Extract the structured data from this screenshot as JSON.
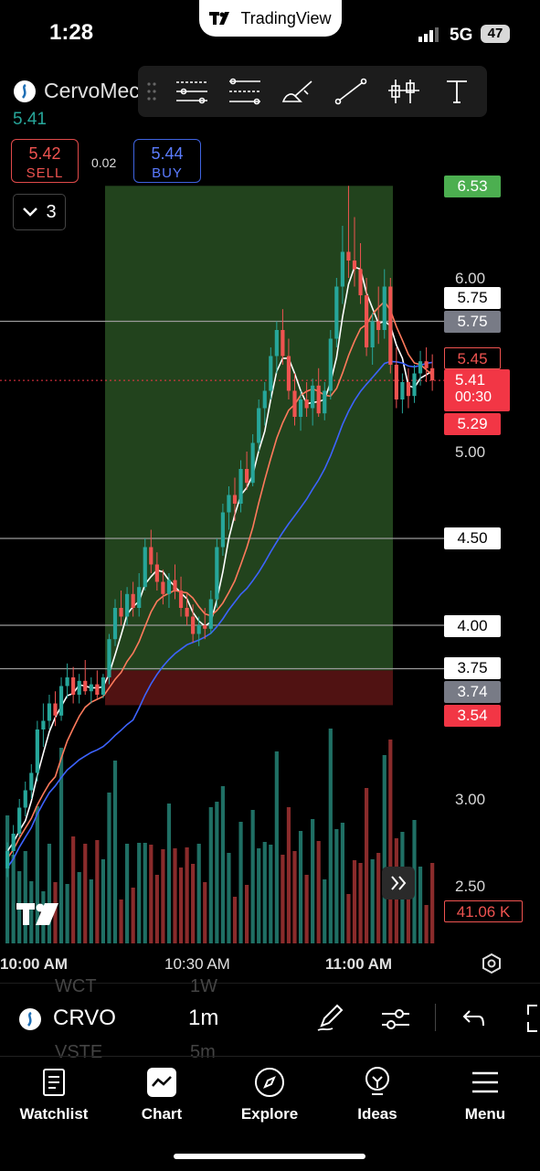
{
  "status_bar": {
    "time": "1:28",
    "network": "5G",
    "battery": "47"
  },
  "app": {
    "name": "TradingView"
  },
  "header": {
    "symbol_name": "CervoMec",
    "last_price": "5.41",
    "sell": {
      "price": "5.42",
      "label": "SELL"
    },
    "buy": {
      "price": "5.44",
      "label": "BUY"
    },
    "spread": "0.02",
    "layers_count": "3"
  },
  "draw_tools": [
    "horizontal-lines-icon",
    "parallel-channel-icon",
    "brush-icon",
    "trend-line-icon",
    "candles-icon",
    "text-icon"
  ],
  "price_axis": {
    "labels": [
      "6.00",
      "5.00",
      "3.00",
      "2.50"
    ],
    "tags": [
      {
        "text": "6.53",
        "role": "take-profit"
      },
      {
        "text": "5.75",
        "role": "line-white"
      },
      {
        "text": "5.75",
        "role": "gray"
      },
      {
        "text": "5.45",
        "role": "red-outline"
      },
      {
        "text": "5.41",
        "role": "last"
      },
      {
        "text": "00:30",
        "role": "countdown"
      },
      {
        "text": "5.29",
        "role": "red"
      },
      {
        "text": "4.50",
        "role": "line-white"
      },
      {
        "text": "4.00",
        "role": "line-white"
      },
      {
        "text": "3.75",
        "role": "line-white"
      },
      {
        "text": "3.74",
        "role": "gray"
      },
      {
        "text": "3.54",
        "role": "stop-loss"
      },
      {
        "text": "41.06 K",
        "role": "volume"
      }
    ]
  },
  "time_axis": [
    "10:00 AM",
    "10:30 AM",
    "11:00 AM"
  ],
  "bottom": {
    "ghost_intervals": [
      "WCT",
      "1W",
      "VSTE",
      "5m"
    ],
    "symbol": "CRVO",
    "interval": "1m"
  },
  "tabs": [
    {
      "label": "Watchlist",
      "icon": "watchlist-icon"
    },
    {
      "label": "Chart",
      "icon": "chart-icon"
    },
    {
      "label": "Explore",
      "icon": "compass-icon"
    },
    {
      "label": "Ideas",
      "icon": "ideas-icon"
    },
    {
      "label": "Menu",
      "icon": "menu-icon"
    }
  ],
  "chart_data": {
    "type": "candlestick",
    "symbol": "CRVO",
    "interval": "1m",
    "x": [
      "10:00 AM",
      "10:30 AM",
      "11:00 AM"
    ],
    "position": {
      "entry": 3.74,
      "target": 6.53,
      "stop": 3.54
    },
    "horizontal_lines": [
      5.75,
      4.5,
      4.0,
      3.75
    ],
    "candles_ohlc": [
      [
        2.6,
        2.75,
        2.55,
        2.7
      ],
      [
        2.7,
        2.85,
        2.66,
        2.8
      ],
      [
        2.8,
        3.0,
        2.78,
        2.95
      ],
      [
        2.95,
        3.1,
        2.9,
        3.05
      ],
      [
        3.05,
        3.2,
        3.0,
        3.15
      ],
      [
        3.15,
        3.45,
        3.1,
        3.4
      ],
      [
        3.4,
        3.55,
        3.3,
        3.45
      ],
      [
        3.45,
        3.6,
        3.4,
        3.55
      ],
      [
        3.55,
        3.62,
        3.42,
        3.48
      ],
      [
        3.48,
        3.7,
        3.45,
        3.65
      ],
      [
        3.65,
        3.78,
        3.58,
        3.7
      ],
      [
        3.7,
        3.76,
        3.55,
        3.6
      ],
      [
        3.6,
        3.72,
        3.55,
        3.68
      ],
      [
        3.68,
        3.8,
        3.6,
        3.62
      ],
      [
        3.62,
        3.7,
        3.55,
        3.66
      ],
      [
        3.66,
        3.74,
        3.58,
        3.6
      ],
      [
        3.6,
        3.72,
        3.58,
        3.7
      ],
      [
        3.7,
        3.95,
        3.66,
        3.92
      ],
      [
        3.92,
        4.15,
        3.88,
        4.1
      ],
      [
        4.1,
        4.2,
        4.0,
        4.05
      ],
      [
        4.05,
        4.22,
        4.0,
        4.18
      ],
      [
        4.18,
        4.25,
        4.05,
        4.1
      ],
      [
        4.1,
        4.3,
        4.05,
        4.22
      ],
      [
        4.22,
        4.5,
        4.2,
        4.45
      ],
      [
        4.45,
        4.55,
        4.3,
        4.35
      ],
      [
        4.35,
        4.42,
        4.2,
        4.25
      ],
      [
        4.25,
        4.32,
        4.12,
        4.18
      ],
      [
        4.18,
        4.3,
        4.1,
        4.26
      ],
      [
        4.26,
        4.35,
        4.15,
        4.2
      ],
      [
        4.2,
        4.28,
        4.05,
        4.1
      ],
      [
        4.1,
        4.18,
        4.0,
        4.05
      ],
      [
        4.05,
        4.12,
        3.9,
        3.95
      ],
      [
        3.95,
        4.05,
        3.88,
        4.0
      ],
      [
        4.0,
        4.1,
        3.92,
        3.98
      ],
      [
        3.98,
        4.2,
        3.95,
        4.15
      ],
      [
        4.15,
        4.5,
        4.1,
        4.45
      ],
      [
        4.45,
        4.7,
        4.4,
        4.65
      ],
      [
        4.65,
        4.8,
        4.55,
        4.75
      ],
      [
        4.75,
        4.85,
        4.6,
        4.7
      ],
      [
        4.7,
        4.95,
        4.65,
        4.9
      ],
      [
        4.9,
        5.0,
        4.78,
        4.82
      ],
      [
        4.82,
        5.1,
        4.8,
        5.05
      ],
      [
        5.05,
        5.3,
        5.0,
        5.25
      ],
      [
        5.25,
        5.4,
        5.15,
        5.35
      ],
      [
        5.35,
        5.6,
        5.3,
        5.55
      ],
      [
        5.55,
        5.75,
        5.45,
        5.7
      ],
      [
        5.7,
        5.82,
        5.5,
        5.55
      ],
      [
        5.55,
        5.65,
        5.3,
        5.35
      ],
      [
        5.35,
        5.45,
        5.15,
        5.2
      ],
      [
        5.2,
        5.35,
        5.12,
        5.3
      ],
      [
        5.3,
        5.4,
        5.2,
        5.25
      ],
      [
        5.25,
        5.42,
        5.15,
        5.38
      ],
      [
        5.38,
        5.48,
        5.2,
        5.22
      ],
      [
        5.22,
        5.4,
        5.18,
        5.35
      ],
      [
        5.35,
        5.7,
        5.3,
        5.65
      ],
      [
        5.65,
        6.0,
        5.6,
        5.95
      ],
      [
        5.95,
        6.3,
        5.85,
        6.15
      ],
      [
        6.15,
        6.53,
        6.0,
        6.1
      ],
      [
        6.1,
        6.35,
        5.95,
        6.05
      ],
      [
        6.05,
        6.2,
        5.85,
        5.9
      ],
      [
        5.9,
        6.0,
        5.55,
        5.6
      ],
      [
        5.6,
        5.8,
        5.5,
        5.75
      ],
      [
        5.75,
        5.95,
        5.62,
        5.7
      ],
      [
        5.7,
        6.05,
        5.65,
        5.95
      ],
      [
        5.95,
        6.0,
        5.45,
        5.5
      ],
      [
        5.5,
        5.6,
        5.25,
        5.3
      ],
      [
        5.3,
        5.45,
        5.22,
        5.4
      ],
      [
        5.4,
        5.48,
        5.25,
        5.32
      ],
      [
        5.32,
        5.5,
        5.28,
        5.45
      ],
      [
        5.45,
        5.58,
        5.38,
        5.52
      ],
      [
        5.52,
        5.6,
        5.4,
        5.48
      ],
      [
        5.48,
        5.56,
        5.35,
        5.41
      ]
    ],
    "volume_last": "41.06 K",
    "ma_series": [
      "white",
      "coral",
      "blue"
    ]
  }
}
